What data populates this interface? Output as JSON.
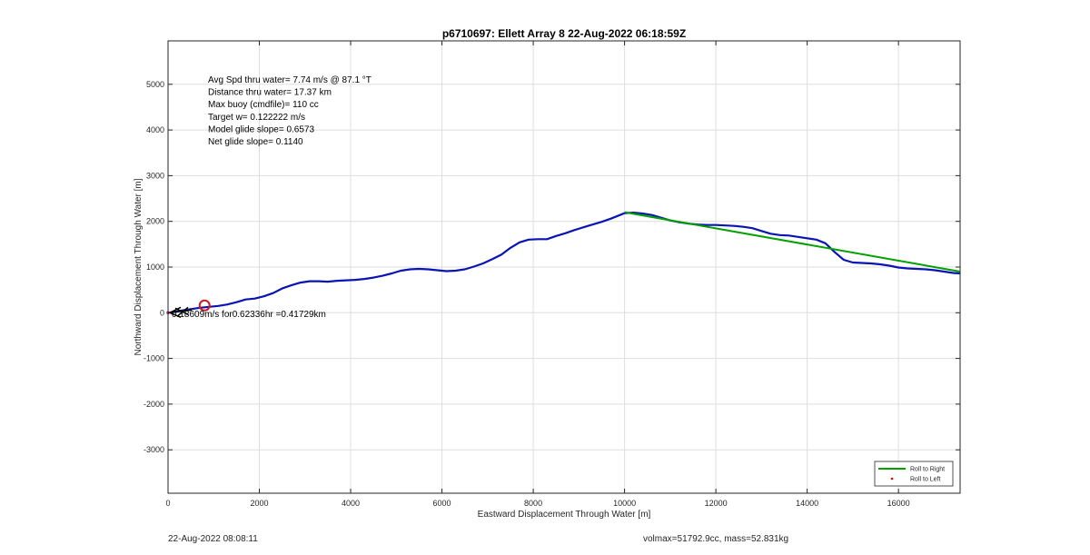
{
  "chart_data": {
    "type": "line",
    "title": "p6710697: Ellett Array 8 22-Aug-2022 06:18:59Z",
    "xlabel": "Eastward Displacement Through Water [m]",
    "ylabel": "Northward Displacement Through Water [m]",
    "xlim": [
      0,
      17350
    ],
    "ylim": [
      -3950,
      5950
    ],
    "x_ticks": [
      0,
      2000,
      4000,
      6000,
      8000,
      10000,
      12000,
      14000,
      16000
    ],
    "y_ticks": [
      -3000,
      -2000,
      -1000,
      0,
      1000,
      2000,
      3000,
      4000,
      5000
    ],
    "grid": true,
    "legend_position": "bottom-right",
    "legend": [
      {
        "label": "Roll to Right",
        "color": "#00a000",
        "marker": "line"
      },
      {
        "label": "Roll to Left",
        "color": "#e00000",
        "marker": "dot"
      }
    ],
    "series": [
      {
        "color": "#0a14b4",
        "x": [
          0,
          150,
          300,
          500,
          700,
          900,
          1100,
          1300,
          1500,
          1700,
          1900,
          2100,
          2300,
          2500,
          2700,
          2900,
          3100,
          3300,
          3500,
          3700,
          3900,
          4100,
          4300,
          4500,
          4700,
          4900,
          5100,
          5300,
          5500,
          5700,
          5900,
          6100,
          6300,
          6500,
          6700,
          6900,
          7100,
          7300,
          7500,
          7700,
          7900,
          8100,
          8300,
          8500,
          8700,
          8900,
          9100,
          9300,
          9500,
          9700,
          9900,
          10000,
          10200,
          10400,
          10600,
          10800,
          11000,
          11200,
          11400,
          11600,
          11800,
          12000,
          12200,
          12400,
          12600,
          12800,
          13000,
          13200,
          13400,
          13600,
          13800,
          14000,
          14200,
          14400,
          14600,
          14800,
          15000,
          15200,
          15400,
          15600,
          15800,
          16000,
          16200,
          16400,
          16600,
          16800,
          17000,
          17200,
          17350
        ],
        "y": [
          0,
          20,
          50,
          80,
          110,
          130,
          150,
          180,
          230,
          290,
          310,
          360,
          430,
          530,
          600,
          660,
          690,
          690,
          680,
          700,
          710,
          720,
          740,
          770,
          810,
          860,
          920,
          950,
          960,
          950,
          930,
          910,
          920,
          950,
          1010,
          1080,
          1170,
          1270,
          1420,
          1540,
          1600,
          1610,
          1610,
          1680,
          1740,
          1810,
          1870,
          1930,
          1990,
          2060,
          2140,
          2180,
          2190,
          2170,
          2140,
          2080,
          2020,
          1980,
          1950,
          1930,
          1920,
          1920,
          1910,
          1900,
          1880,
          1850,
          1790,
          1730,
          1700,
          1690,
          1660,
          1630,
          1600,
          1520,
          1330,
          1160,
          1100,
          1090,
          1080,
          1060,
          1030,
          990,
          970,
          960,
          950,
          930,
          900,
          870,
          860
        ]
      },
      {
        "color": "#00a000",
        "x": [
          10000,
          17350
        ],
        "y": [
          2200,
          900
        ]
      }
    ],
    "markers": [
      {
        "type": "circle",
        "color": "#c81e1e",
        "x": 800,
        "y": 160
      },
      {
        "type": "dot",
        "color": "#c8168c",
        "x": 0,
        "y": 0
      }
    ],
    "annotations": {
      "stats": [
        "Avg Spd thru water=  7.74 m/s @  87.1 °T",
        "Distance thru water= 17.37 km",
        "Max buoy (cmdfile)= 110 cc",
        "Target w= 0.122222 m/s",
        "Model glide slope= 0.6573",
        "Net glide slope= 0.1140"
      ],
      "current_label": "0.18609m/s for0.62336hr =0.41729km"
    }
  },
  "footer": {
    "left": "22-Aug-2022 08:08:11",
    "right": "volmax=51792.9cc, mass=52.831kg"
  }
}
